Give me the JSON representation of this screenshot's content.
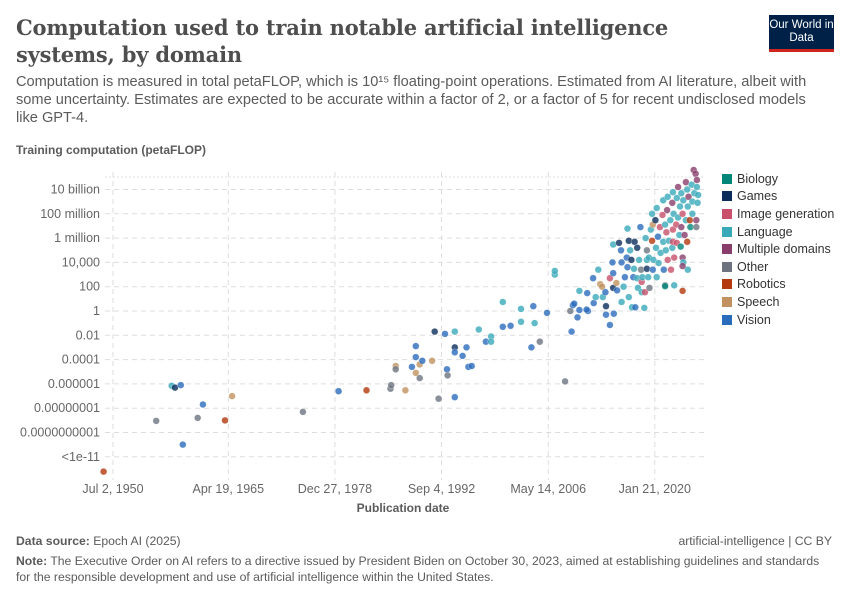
{
  "header": {
    "title": "Computation used to train notable artificial intelligence systems, by domain",
    "subtitle": "Computation is measured in total petaFLOP, which is 10¹⁵ floating-point operations. Estimated from AI literature, albeit with some uncertainty. Estimates are expected to be accurate within a factor of 2, or a factor of 5 for recent undisclosed models like GPT-4.",
    "logo_text": "Our World in Data",
    "logo_colors": {
      "background": "#002147",
      "accent": "#ce261e"
    }
  },
  "footer": {
    "source_label": "Data source:",
    "source_value": "Epoch AI (2025)",
    "license": "artificial-intelligence | CC BY",
    "note_label": "Note:",
    "note_text": "The Executive Order on AI refers to a directive issued by President Biden on October 30, 2023, aimed at establishing guidelines and standards for the responsible development and use of artificial intelligence within the United States."
  },
  "chart_data": {
    "type": "scatter",
    "title": "Computation used to train notable artificial intelligence systems, by domain",
    "xlabel": "Publication date",
    "ylabel": "Training computation (petaFLOP)",
    "y_scale": "log",
    "grid": true,
    "legend_placement": "right",
    "x_ticks": [
      {
        "label": "Jul 2, 1950",
        "date": "1950-07-02"
      },
      {
        "label": "Apr 19, 1965",
        "date": "1965-04-19"
      },
      {
        "label": "Dec 27, 1978",
        "date": "1978-12-27"
      },
      {
        "label": "Sep 4, 1992",
        "date": "1992-09-04"
      },
      {
        "label": "May 14, 2006",
        "date": "2006-05-14"
      },
      {
        "label": "Jan 21, 2020",
        "date": "2020-01-21"
      }
    ],
    "y_ticks": [
      {
        "label": "10 billion",
        "value": 10000000000.0
      },
      {
        "label": "100 million",
        "value": 100000000.0
      },
      {
        "label": "1 million",
        "value": 1000000.0
      },
      {
        "label": "10,000",
        "value": 10000.0
      },
      {
        "label": "100",
        "value": 100
      },
      {
        "label": "1",
        "value": 1
      },
      {
        "label": "0.01",
        "value": 0.01
      },
      {
        "label": "0.0001",
        "value": 0.0001
      },
      {
        "label": "0.000001",
        "value": 1e-06
      },
      {
        "label": "0.00000001",
        "value": 1e-08
      },
      {
        "label": "0.0000000001",
        "value": 1e-10
      },
      {
        "label": "<1e-11",
        "value": 1e-12
      }
    ],
    "domains": [
      {
        "name": "Biology",
        "color": "#00877a"
      },
      {
        "name": "Games",
        "color": "#0b2d5b"
      },
      {
        "name": "Image generation",
        "color": "#c8506a"
      },
      {
        "name": "Language",
        "color": "#38a9b9"
      },
      {
        "name": "Multiple domains",
        "color": "#883d6b"
      },
      {
        "name": "Other",
        "color": "#6d7480"
      },
      {
        "name": "Robotics",
        "color": "#b3380c"
      },
      {
        "name": "Speech",
        "color": "#c1925f"
      },
      {
        "name": "Vision",
        "color": "#2a6cbc"
      }
    ],
    "points_fields": [
      "date",
      "petaFLOP",
      "domain_index"
    ],
    "points": [
      [
        "1949-04",
        6e-14,
        6
      ],
      [
        "1958-01",
        7e-07,
        3
      ],
      [
        "1958-06",
        5e-07,
        1
      ],
      [
        "1959-03",
        8e-07,
        8
      ],
      [
        "1956-01",
        9e-10,
        5
      ],
      [
        "1959-06",
        1e-11,
        8
      ],
      [
        "1962-01",
        2e-08,
        8
      ],
      [
        "1961-05",
        1.6e-09,
        5
      ],
      [
        "1965-10",
        1e-07,
        7
      ],
      [
        "1964-11",
        1e-09,
        6
      ],
      [
        "1974-11",
        5e-09,
        5
      ],
      [
        "1979-06",
        2.5e-07,
        8
      ],
      [
        "1983-01",
        3e-07,
        6
      ],
      [
        "1986-02",
        4e-07,
        5
      ],
      [
        "1986-03",
        8e-07,
        5
      ],
      [
        "1986-10",
        3e-05,
        7
      ],
      [
        "1986-10",
        1.6e-05,
        5
      ],
      [
        "1988-01",
        3e-07,
        7
      ],
      [
        "1988-11",
        2.5e-05,
        8
      ],
      [
        "1989-05",
        0.0013,
        8
      ],
      [
        "1989-05",
        0.00016,
        8
      ],
      [
        "1989-05",
        8e-06,
        7
      ],
      [
        "1989-11",
        4e-05,
        7
      ],
      [
        "1989-11",
        3e-06,
        5
      ],
      [
        "1990-03",
        8e-05,
        8
      ],
      [
        "1991-06",
        8e-05,
        7
      ],
      [
        "1991-10",
        0.02,
        1
      ],
      [
        "1992-04",
        6e-08,
        5
      ],
      [
        "1993-02",
        0.013,
        8
      ],
      [
        "1993-05",
        1.6e-05,
        8
      ],
      [
        "1993-06",
        5e-06,
        5
      ],
      [
        "1994-05",
        0.02,
        3
      ],
      [
        "1994-05",
        0.001,
        1
      ],
      [
        "1994-05",
        0.0004,
        8
      ],
      [
        "1994-05",
        8e-08,
        8
      ],
      [
        "1995-05",
        0.0002,
        8
      ],
      [
        "1995-11",
        0.001,
        8
      ],
      [
        "1996-02",
        2.5e-05,
        8
      ],
      [
        "1996-07",
        3e-05,
        8
      ],
      [
        "1997-06",
        0.03,
        3
      ],
      [
        "1998-05",
        0.003,
        8
      ],
      [
        "1999-01",
        0.008,
        3
      ],
      [
        "1999-01",
        0.003,
        3
      ],
      [
        "2000-07",
        5.5,
        3
      ],
      [
        "2000-07",
        0.05,
        8
      ],
      [
        "2001-07",
        0.06,
        8
      ],
      [
        "2002-11",
        1.5,
        3
      ],
      [
        "2002-11",
        0.13,
        3
      ],
      [
        "2004-03",
        0.001,
        8
      ],
      [
        "2004-06",
        2.5,
        8
      ],
      [
        "2004-08",
        0.1,
        3
      ],
      [
        "2005-04",
        0.003,
        5
      ],
      [
        "2006-03",
        0.7,
        8
      ],
      [
        "2007-03",
        1000,
        3
      ],
      [
        "2007-03",
        2000,
        3
      ],
      [
        "2008-07",
        1.6e-06,
        5
      ],
      [
        "2009-03",
        1,
        5
      ],
      [
        "2009-05",
        0.02,
        8
      ],
      [
        "2009-07",
        3,
        8
      ],
      [
        "2010-02",
        0.3,
        8
      ],
      [
        "2010-05",
        1.2,
        8
      ],
      [
        "2010-05",
        45,
        3
      ],
      [
        "2011-05",
        30,
        8
      ],
      [
        "2011-06",
        1,
        8
      ],
      [
        "2012-03",
        4.5,
        8
      ],
      [
        "2012-06",
        14,
        3
      ],
      [
        "2009-09",
        4,
        8
      ],
      [
        "2011-04",
        1.3,
        8
      ],
      [
        "2012-02",
        500,
        8
      ],
      [
        "2012-10",
        2500,
        3
      ],
      [
        "2013-01",
        160,
        7
      ],
      [
        "2013-04",
        100,
        7
      ],
      [
        "2013-05",
        14,
        3
      ],
      [
        "2013-09",
        35,
        8
      ],
      [
        "2013-10",
        2.5,
        1
      ],
      [
        "2013-10",
        0.5,
        8
      ],
      [
        "2014-04",
        500,
        2
      ],
      [
        "2014-04",
        0.07,
        8
      ],
      [
        "2014-08",
        10000.0,
        8
      ],
      [
        "2014-09",
        1300,
        8
      ],
      [
        "2014-09",
        300000.0,
        3
      ],
      [
        "2014-09",
        80,
        1
      ],
      [
        "2014-10",
        0.6,
        8
      ],
      [
        "2015-02",
        200,
        7
      ],
      [
        "2015-03",
        50,
        8
      ],
      [
        "2015-06",
        400000.0,
        1
      ],
      [
        "2015-09",
        100000.0,
        8
      ],
      [
        "2015-10",
        10000.0,
        8
      ],
      [
        "2015-10",
        5.5,
        3
      ],
      [
        "2016-01",
        100,
        3
      ],
      [
        "2016-03",
        600,
        8
      ],
      [
        "2016-06",
        25000.0,
        8
      ],
      [
        "2016-07",
        6000000.0,
        3
      ],
      [
        "2016-07",
        4000,
        8
      ],
      [
        "2016-09",
        14,
        3
      ],
      [
        "2016-09",
        600000.0,
        1
      ],
      [
        "2016-11",
        100000.0,
        3
      ],
      [
        "2017-01",
        16000.0,
        1
      ],
      [
        "2017-02",
        2,
        3
      ],
      [
        "2017-04",
        600,
        8
      ],
      [
        "2017-05",
        3000,
        3
      ],
      [
        "2017-06",
        500000.0,
        1
      ],
      [
        "2017-07",
        2,
        8
      ],
      [
        "2017-10",
        160000.0,
        1
      ],
      [
        "2017-10",
        500,
        3
      ],
      [
        "2017-11",
        80,
        3
      ],
      [
        "2018-01",
        16000.0,
        3
      ],
      [
        "2018-03",
        8000000.0,
        8
      ],
      [
        "2018-04",
        2500,
        5
      ],
      [
        "2018-05",
        250,
        2
      ],
      [
        "2018-05",
        35,
        3
      ],
      [
        "2018-06",
        600,
        3
      ],
      [
        "2018-09",
        1.8,
        3
      ],
      [
        "2018-10",
        35,
        2
      ],
      [
        "2018-11",
        1000000.0,
        3
      ],
      [
        "2019-01",
        16000.0,
        3
      ],
      [
        "2019-01",
        100000.0,
        5
      ],
      [
        "2019-01",
        3000,
        1
      ],
      [
        "2019-03",
        600,
        3
      ],
      [
        "2019-04",
        25000.0,
        3
      ],
      [
        "2019-05",
        80,
        5
      ],
      [
        "2019-07",
        5000000.0,
        3
      ],
      [
        "2019-09",
        600000.0,
        6
      ],
      [
        "2019-09",
        100000000.0,
        3
      ],
      [
        "2019-10",
        2500,
        8
      ],
      [
        "2019-10",
        13000000.0,
        7
      ],
      [
        "2019-11",
        16000.0,
        3
      ],
      [
        "2020-02",
        30000000.0,
        1
      ],
      [
        "2020-03",
        160000.0,
        3
      ],
      [
        "2020-04",
        300000000.0,
        3
      ],
      [
        "2020-04",
        600,
        3
      ],
      [
        "2020-06",
        1300000.0,
        8
      ],
      [
        "2020-07",
        9000,
        3
      ],
      [
        "2020-09",
        8000000.0,
        2
      ],
      [
        "2020-10",
        60000.0,
        3
      ],
      [
        "2021-01",
        80000000.0,
        2
      ],
      [
        "2021-02",
        500000.0,
        3
      ],
      [
        "2021-02",
        1300000000.0,
        3
      ],
      [
        "2021-03",
        2500,
        8
      ],
      [
        "2021-05",
        13000000.0,
        3
      ],
      [
        "2021-05",
        130,
        5
      ],
      [
        "2021-06",
        100000.0,
        3
      ],
      [
        "2021-07",
        3000000.0,
        2
      ],
      [
        "2021-08",
        200000000.0,
        4
      ],
      [
        "2021-09",
        2500000000.0,
        3
      ],
      [
        "2021-09",
        16000.0,
        2
      ],
      [
        "2021-11",
        600000.0,
        3
      ],
      [
        "2022-01",
        30000000.0,
        3
      ],
      [
        "2022-02",
        2500,
        2
      ],
      [
        "2022-04",
        800000000.0,
        4
      ],
      [
        "2022-04",
        160000.0,
        3
      ],
      [
        "2022-05",
        5000000.0,
        2
      ],
      [
        "2022-05",
        6000000000.0,
        3
      ],
      [
        "2022-05",
        500000.0,
        2
      ],
      [
        "2022-06",
        100000000.0,
        3
      ],
      [
        "2022-07",
        25000.0,
        2
      ],
      [
        "2022-10",
        13000000.0,
        2
      ],
      [
        "2022-11",
        2000000000.0,
        3
      ],
      [
        "2022-11",
        400000.0,
        2
      ],
      [
        "2023-01",
        50000000.0,
        3
      ],
      [
        "2023-01",
        16000000000.0,
        4
      ],
      [
        "2023-03",
        1800000.0,
        3
      ],
      [
        "2023-04",
        400000000.0,
        3
      ],
      [
        "2023-05",
        200000.0,
        0
      ],
      [
        "2023-06",
        5000000000.0,
        3
      ],
      [
        "2023-06",
        8000000.0,
        4
      ],
      [
        "2023-08",
        25000.0,
        4
      ],
      [
        "2023-08",
        100000000.0,
        2
      ],
      [
        "2023-09",
        1300000000.0,
        3
      ],
      [
        "2023-09",
        10000.0,
        3
      ],
      [
        "2023-11",
        1800000.0,
        4
      ],
      [
        "2024-01",
        30000000.0,
        3
      ],
      [
        "2024-01",
        40000000000.0,
        4
      ],
      [
        "2024-03",
        500000.0,
        6
      ],
      [
        "2024-03",
        10000000000.0,
        3
      ],
      [
        "2024-04",
        400000000.0,
        3
      ],
      [
        "2024-04",
        2500,
        3
      ],
      [
        "2024-05",
        2500000000.0,
        4
      ],
      [
        "2024-07",
        30000000.0,
        6
      ],
      [
        "2024-08",
        8000000.0,
        0
      ],
      [
        "2024-10",
        25000000000.0,
        3
      ],
      [
        "2024-11",
        1000000000.0,
        3
      ],
      [
        "2024-11",
        100000000.0,
        3
      ],
      [
        "2025-01",
        400000000000.0,
        4
      ],
      [
        "2025-02",
        5000000000.0,
        3
      ],
      [
        "2025-04",
        200000000000.0,
        4
      ],
      [
        "2025-05",
        30000000.0,
        4
      ],
      [
        "2025-05",
        8000000.0,
        5
      ],
      [
        "2025-06",
        16000000000.0,
        3
      ],
      [
        "2025-07",
        800000000.0,
        3
      ],
      [
        "2025-08",
        3500000000.0,
        3
      ],
      [
        "2025-06",
        60000000000.0,
        4
      ],
      [
        "2023-08",
        45,
        6
      ],
      [
        "2021-05",
        110,
        0
      ],
      [
        "2022-07",
        130,
        3
      ],
      [
        "2023-08",
        5000,
        4
      ]
    ]
  }
}
